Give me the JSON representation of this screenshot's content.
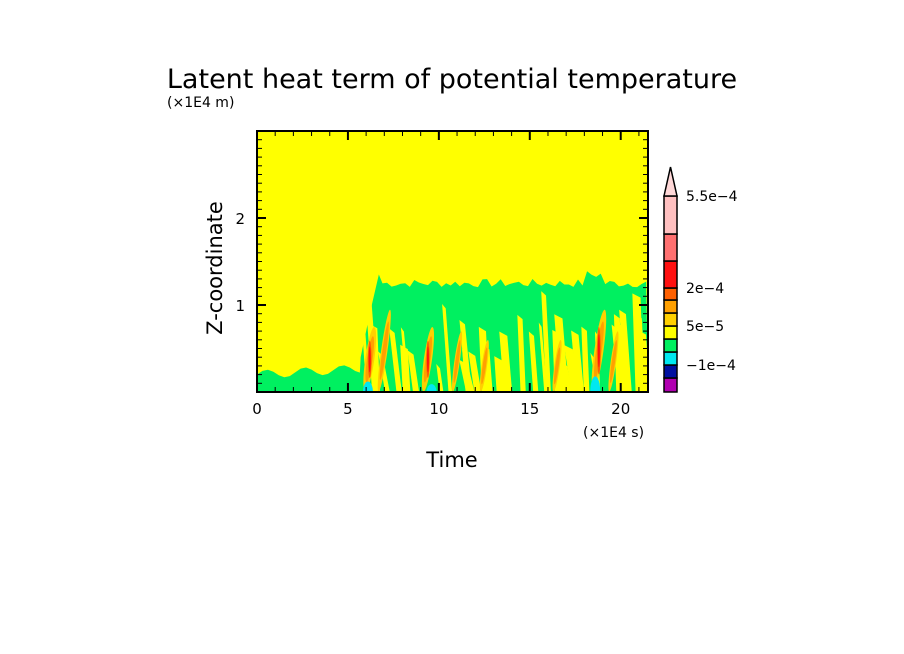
{
  "chart_data": {
    "type": "heatmap",
    "title": "Latent heat term of potential temperature",
    "xlabel": "Time",
    "ylabel": "Z-coordinate",
    "x_unit": "(×1E4 s)",
    "y_unit": "(×1E4 m)",
    "xlim": [
      0,
      21.5
    ],
    "ylim": [
      0,
      3
    ],
    "xticks": [
      0,
      5,
      10,
      15,
      20
    ],
    "xtick_labels": [
      "0",
      "5",
      "10",
      "15",
      "20"
    ],
    "yticks": [
      1,
      2
    ],
    "ytick_labels": [
      "1",
      "2"
    ],
    "colorbar": {
      "colors": [
        "#b000b0",
        "#0010a0",
        "#00e8f0",
        "#00f060",
        "#ffff00",
        "#ffd000",
        "#ffa000",
        "#ff6000",
        "#ff1010",
        "#ff7070",
        "#ffc0c0",
        "#ffd8d8"
      ],
      "labels": [
        "5.5e-4",
        "2e-4",
        "5e-5",
        "-1e-4"
      ],
      "extend": "max"
    },
    "description_values": {
      "background_value": "5e-5 to 1e-4 (yellow)",
      "convection_onset_x": 5.8,
      "active_layer_top_y": 1.25
    }
  }
}
